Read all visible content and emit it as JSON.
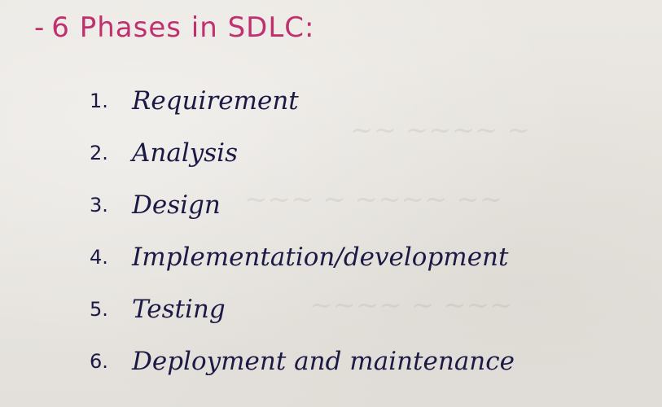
{
  "heading": {
    "prefix": "-",
    "text": "6 Phases in SDLC:"
  },
  "phases": [
    {
      "number": "1.",
      "label": "Requirement"
    },
    {
      "number": "2.",
      "label": "Analysis"
    },
    {
      "number": "3.",
      "label": "Design"
    },
    {
      "number": "4.",
      "label": "Implementation/development"
    },
    {
      "number": "5.",
      "label": "Testing"
    },
    {
      "number": "6.",
      "label": "Deployment and maintenance"
    }
  ],
  "colors": {
    "heading_ink": "#c0306e",
    "body_ink": "#1c1a45",
    "paper": "#e9e6e1"
  }
}
